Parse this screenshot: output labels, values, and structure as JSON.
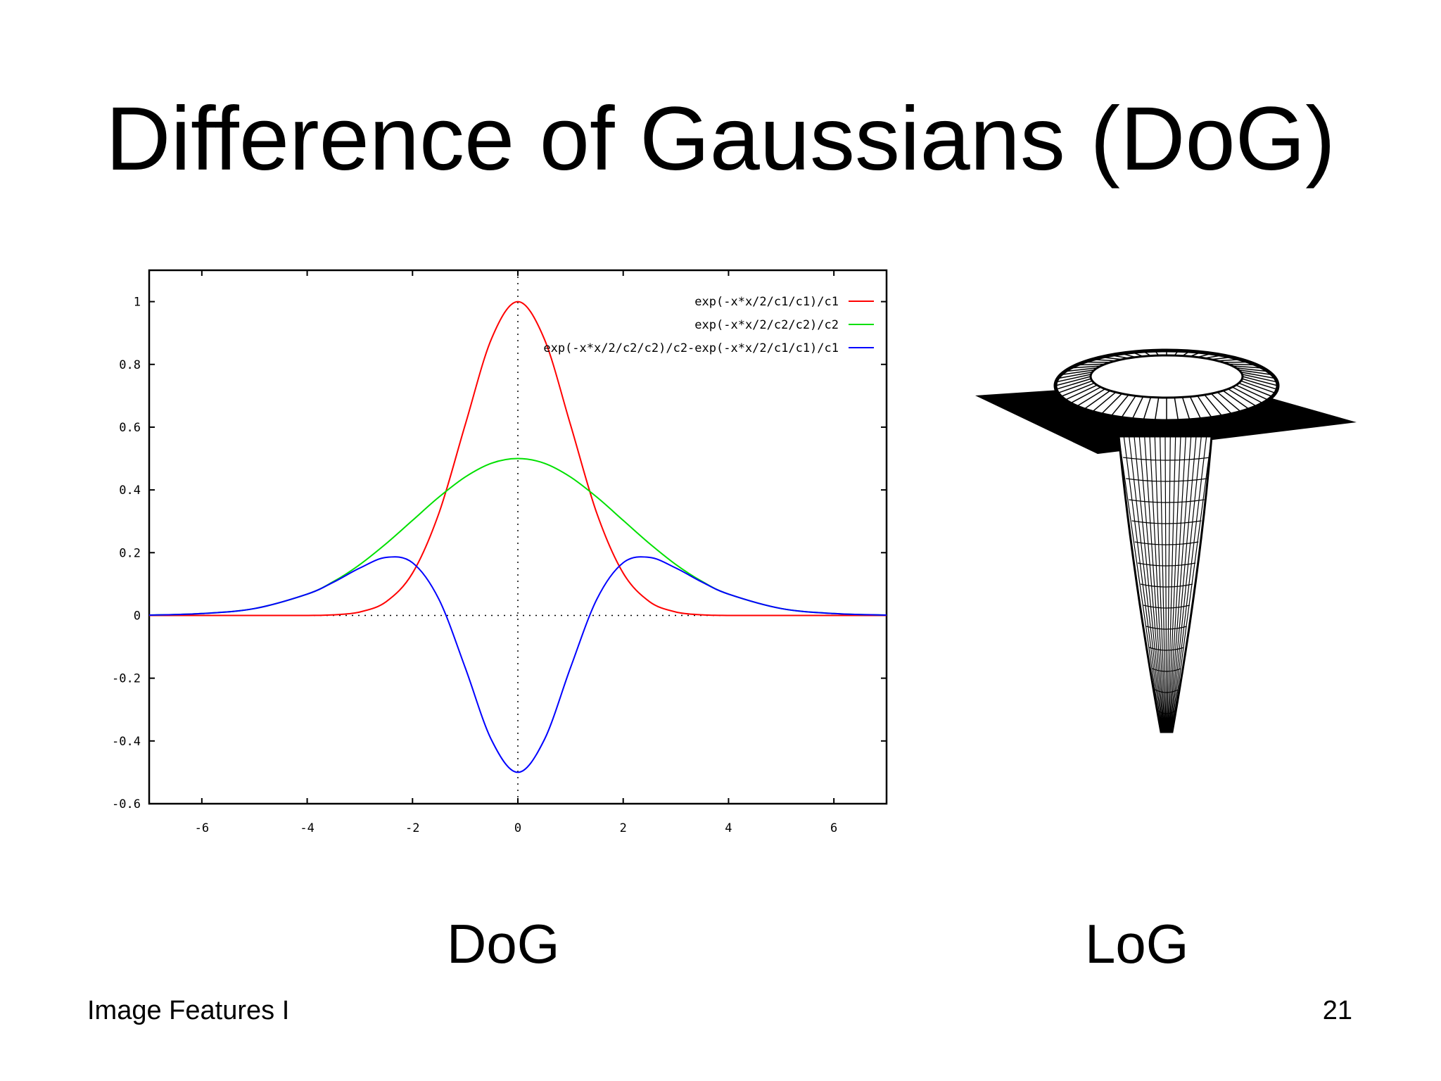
{
  "slide": {
    "title": "Difference of Gaussians (DoG)",
    "caption_left": "DoG",
    "caption_right": "LoG",
    "footer_left": "Image Features I",
    "page_number": "21"
  },
  "chart_data": [
    {
      "type": "line",
      "title": "",
      "xlabel": "",
      "ylabel": "",
      "xlim": [
        -7,
        7
      ],
      "ylim": [
        -0.6,
        1.1
      ],
      "xticks": [
        "-6",
        "-4",
        "-2",
        "0",
        "2",
        "4",
        "6"
      ],
      "xtick_values": [
        -6,
        -4,
        -2,
        0,
        2,
        4,
        6
      ],
      "yticks": [
        "1",
        "0.8",
        "0.6",
        "0.4",
        "0.2",
        "0",
        "-0.2",
        "-0.4",
        "-0.6"
      ],
      "ytick_values": [
        1,
        0.8,
        0.6,
        0.4,
        0.2,
        0,
        -0.2,
        -0.4,
        -0.6
      ],
      "grid": false,
      "zero_axes": "dotted",
      "legend_position": "top-right",
      "series": [
        {
          "name": "exp(-x*x/2/c1/c1)/c1",
          "color": "#ff0000",
          "x": [
            -7,
            -6,
            -5,
            -4,
            -3.5,
            -3,
            -2.5,
            -2,
            -1.5,
            -1,
            -0.5,
            0,
            0.5,
            1,
            1.5,
            2,
            2.5,
            3,
            3.5,
            4,
            5,
            6,
            7
          ],
          "values": [
            0.0,
            0.0,
            0.0,
            0.0,
            0.002,
            0.011,
            0.044,
            0.135,
            0.325,
            0.607,
            0.882,
            1.0,
            0.882,
            0.607,
            0.325,
            0.135,
            0.044,
            0.011,
            0.002,
            0.0,
            0.0,
            0.0,
            0.0
          ]
        },
        {
          "name": "exp(-x*x/2/c2/c2)/c2",
          "color": "#00e000",
          "x": [
            -7,
            -6,
            -5,
            -4,
            -3.5,
            -3,
            -2.5,
            -2,
            -1.5,
            -1,
            -0.5,
            0,
            0.5,
            1,
            1.5,
            2,
            2.5,
            3,
            3.5,
            4,
            5,
            6,
            7
          ],
          "values": [
            0.001,
            0.006,
            0.022,
            0.068,
            0.108,
            0.162,
            0.229,
            0.303,
            0.377,
            0.441,
            0.485,
            0.5,
            0.485,
            0.441,
            0.377,
            0.303,
            0.229,
            0.162,
            0.108,
            0.068,
            0.022,
            0.006,
            0.001
          ]
        },
        {
          "name": "exp(-x*x/2/c2/c2)/c2-exp(-x*x/2/c1/c1)/c1",
          "color": "#0000ff",
          "x": [
            -7,
            -6,
            -5,
            -4,
            -3.5,
            -3,
            -2.5,
            -2,
            -1.5,
            -1,
            -0.5,
            0,
            0.5,
            1,
            1.5,
            2,
            2.5,
            3,
            3.5,
            4,
            5,
            6,
            7
          ],
          "values": [
            0.001,
            0.006,
            0.022,
            0.068,
            0.106,
            0.151,
            0.185,
            0.168,
            0.052,
            -0.166,
            -0.397,
            -0.5,
            -0.397,
            -0.166,
            0.052,
            0.168,
            0.185,
            0.151,
            0.106,
            0.068,
            0.022,
            0.006,
            0.001
          ]
        }
      ]
    },
    {
      "type": "surface-3d",
      "title": "",
      "description_label": "LoG",
      "color": "#000000"
    }
  ]
}
